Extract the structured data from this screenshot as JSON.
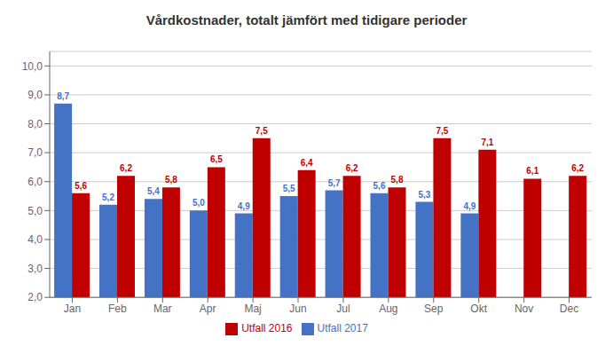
{
  "chart_data": {
    "type": "bar",
    "title": "Vårdkostnader, totalt jämfört med tidigare perioder",
    "categories": [
      "Jan",
      "Feb",
      "Mar",
      "Apr",
      "Maj",
      "Jun",
      "Jul",
      "Aug",
      "Sep",
      "Okt",
      "Nov",
      "Dec"
    ],
    "series": [
      {
        "name": "Utfall 2017",
        "color": "#4472C4",
        "values": [
          8.7,
          5.2,
          5.4,
          5.0,
          4.9,
          5.5,
          5.7,
          5.6,
          5.3,
          4.9,
          null,
          null
        ],
        "value_labels": [
          "8,7",
          "5,2",
          "5,4",
          "5,0",
          "4,9",
          "5,5",
          "5,7",
          "5,6",
          "5,3",
          "4,9",
          null,
          null
        ]
      },
      {
        "name": "Utfall 2016",
        "color": "#C00000",
        "values": [
          5.6,
          6.2,
          5.8,
          6.5,
          7.5,
          6.4,
          6.2,
          5.8,
          7.5,
          7.1,
          6.1,
          6.2
        ],
        "value_labels": [
          "5,6",
          "6,2",
          "5,8",
          "6,5",
          "7,5",
          "6,4",
          "6,2",
          "5,8",
          "7,5",
          "7,1",
          "6,1",
          "6,2"
        ]
      }
    ],
    "ylim": [
      2.0,
      10.5
    ],
    "yticks": [
      {
        "value": 2.0,
        "label": "2,0"
      },
      {
        "value": 3.0,
        "label": "3,0"
      },
      {
        "value": 4.0,
        "label": "4,0"
      },
      {
        "value": 5.0,
        "label": "5,0"
      },
      {
        "value": 6.0,
        "label": "6,0"
      },
      {
        "value": 7.0,
        "label": "7,0"
      },
      {
        "value": 8.0,
        "label": "8,0"
      },
      {
        "value": 9.0,
        "label": "9,0"
      },
      {
        "value": 10.0,
        "label": "10,0"
      }
    ],
    "grid": true,
    "data_labels": true,
    "legend": "bottom"
  }
}
